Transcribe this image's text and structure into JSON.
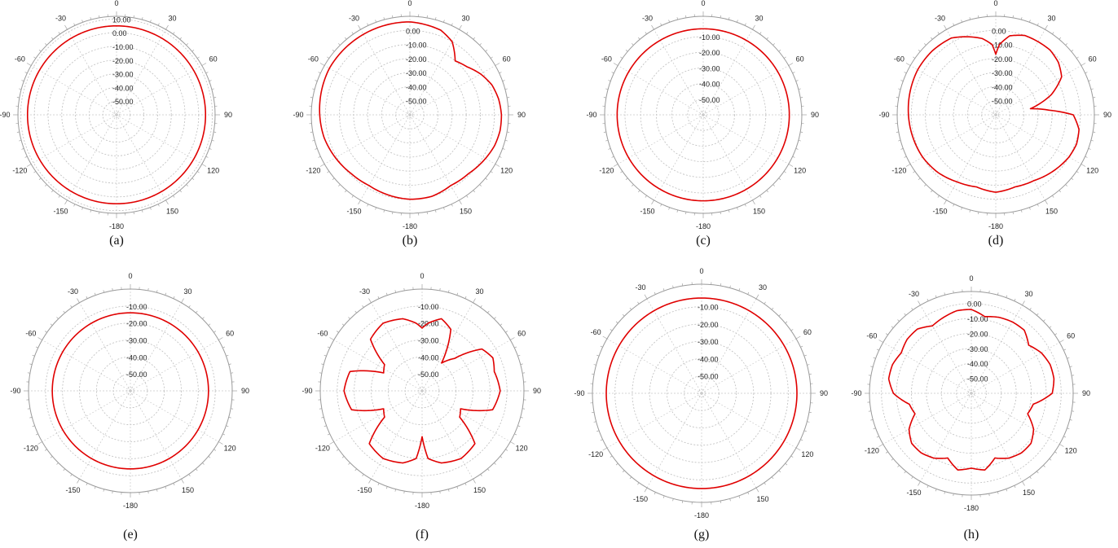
{
  "chart_data": [
    {
      "type": "polar-line",
      "caption": "(a)",
      "theta_ticks": [
        "0",
        "30",
        "60",
        "90",
        "120",
        "150",
        "-180",
        "-150",
        "-120",
        "-90",
        "-60",
        "-30"
      ],
      "r_ticks": [
        "10.00",
        "0.00",
        "-10.00",
        "-20.00",
        "-30.00",
        "-40.00",
        "-50.00"
      ],
      "r_range": [
        -60,
        12
      ],
      "theta_deg": [
        0,
        30,
        60,
        90,
        120,
        150,
        180,
        210,
        240,
        270,
        300,
        330
      ],
      "r_db": [
        5,
        5,
        5,
        5,
        5,
        5,
        5,
        5,
        5,
        5,
        5,
        5
      ],
      "grid": true,
      "line_color": "#e00000"
    },
    {
      "type": "polar-line",
      "caption": "(b)",
      "theta_ticks": [
        "0",
        "30",
        "60",
        "90",
        "120",
        "150",
        "-180",
        "-150",
        "-120",
        "-90",
        "-60",
        "-30"
      ],
      "r_ticks": [
        "0.00",
        "-10.00",
        "-20.00",
        "-30.00",
        "-40.00",
        "-50.00"
      ],
      "r_range": [
        -60,
        10
      ],
      "theta_deg": [
        0,
        20,
        30,
        40,
        50,
        60,
        70,
        80,
        90,
        100,
        110,
        120,
        135,
        150,
        165,
        180,
        195,
        210,
        225,
        240,
        255,
        270,
        285,
        300,
        315,
        330,
        345
      ],
      "r_db": [
        6,
        4,
        0,
        -10,
        -7,
        -2,
        2,
        4,
        5,
        5,
        4,
        2,
        -1,
        -2,
        0,
        0,
        -1,
        -2,
        -1,
        1,
        3,
        4,
        5,
        6,
        6,
        6,
        6
      ],
      "grid": true,
      "line_color": "#e00000"
    },
    {
      "type": "polar-line",
      "caption": "(c)",
      "theta_ticks": [
        "0",
        "30",
        "60",
        "90",
        "120",
        "150",
        "-180",
        "-150",
        "-120",
        "-90",
        "-60",
        "-30"
      ],
      "r_ticks": [
        "-10.00",
        "-20.00",
        "-30.00",
        "-40.00",
        "-50.00"
      ],
      "r_range": [
        -60,
        3
      ],
      "theta_deg": [
        0,
        30,
        60,
        90,
        120,
        150,
        180,
        210,
        240,
        270,
        300,
        330
      ],
      "r_db": [
        -5,
        -5,
        -5,
        -5,
        -5,
        -5,
        -5,
        -5,
        -5,
        -5,
        -5,
        -5
      ],
      "grid": true,
      "line_color": "#e00000"
    },
    {
      "type": "polar-line",
      "caption": "(d)",
      "theta_ticks": [
        "0",
        "30",
        "60",
        "90",
        "120",
        "150",
        "-180",
        "-150",
        "-120",
        "-90",
        "-60",
        "-30"
      ],
      "r_ticks": [
        "0.00",
        "-10.00",
        "-20.00",
        "-30.00",
        "-40.00",
        "-50.00"
      ],
      "r_range": [
        -60,
        10
      ],
      "theta_deg": [
        0,
        3,
        10,
        20,
        30,
        40,
        50,
        60,
        70,
        80,
        85,
        90,
        100,
        110,
        120,
        135,
        150,
        165,
        180,
        195,
        210,
        225,
        240,
        255,
        270,
        285,
        300,
        315,
        330,
        340,
        350,
        357
      ],
      "r_db": [
        -17,
        -10,
        -3,
        0,
        0,
        0,
        -2,
        -6,
        -18,
        -35,
        -22,
        -5,
        0,
        1,
        0,
        -3,
        -6,
        -7,
        -5,
        -7,
        -5,
        -2,
        0,
        1,
        2,
        3,
        4,
        4,
        3,
        -1,
        -5,
        -10
      ],
      "grid": true,
      "line_color": "#e00000"
    },
    {
      "type": "polar-line",
      "caption": "(e)",
      "theta_ticks": [
        "0",
        "30",
        "60",
        "90",
        "120",
        "150",
        "-180",
        "-150",
        "-120",
        "-90",
        "-60",
        "-30"
      ],
      "r_ticks": [
        "-10.00",
        "-20.00",
        "-30.00",
        "-40.00",
        "-50.00"
      ],
      "r_range": [
        -60,
        0
      ],
      "theta_deg": [
        0,
        30,
        60,
        90,
        120,
        150,
        180,
        210,
        240,
        270,
        300,
        330
      ],
      "r_db": [
        -14,
        -14,
        -14,
        -14,
        -14,
        -14,
        -14,
        -14,
        -14,
        -14,
        -14,
        -14
      ],
      "grid": true,
      "line_color": "#e00000"
    },
    {
      "type": "polar-line",
      "caption": "(f)",
      "theta_ticks": [
        "0",
        "30",
        "60",
        "90",
        "120",
        "150",
        "-180",
        "-150",
        "-120",
        "-90",
        "-60",
        "-30"
      ],
      "r_ticks": [
        "-10.00",
        "-20.00",
        "-30.00",
        "-40.00",
        "-50.00"
      ],
      "r_range": [
        -60,
        0
      ],
      "theta_deg": [
        0,
        5,
        15,
        25,
        35,
        45,
        55,
        65,
        75,
        90,
        105,
        115,
        125,
        135,
        150,
        165,
        175,
        180,
        185,
        195,
        210,
        225,
        235,
        245,
        255,
        270,
        285,
        295,
        305,
        315,
        330,
        345,
        355
      ],
      "r_db": [
        -23,
        -20,
        -16,
        -20,
        -40,
        -33,
        -17,
        -14,
        -16,
        -14,
        -17,
        -35,
        -33,
        -16,
        -14,
        -16,
        -20,
        -33,
        -20,
        -16,
        -14,
        -16,
        -33,
        -35,
        -17,
        -14,
        -16,
        -35,
        -33,
        -17,
        -14,
        -16,
        -20
      ],
      "grid": true,
      "line_color": "#e00000"
    },
    {
      "type": "polar-line",
      "caption": "(g)",
      "theta_ticks": [
        "0",
        "30",
        "60",
        "90",
        "120",
        "150",
        "-180",
        "-150",
        "-120",
        "-90",
        "-60",
        "-30"
      ],
      "r_ticks": [
        "-10.00",
        "-20.00",
        "-30.00",
        "-40.00",
        "-50.00"
      ],
      "r_range": [
        -60,
        3
      ],
      "theta_deg": [
        0,
        30,
        60,
        90,
        120,
        150,
        180,
        210,
        240,
        270,
        300,
        330
      ],
      "r_db": [
        -5,
        -5,
        -5,
        -5,
        -5,
        -5,
        -5,
        -5,
        -5,
        -5,
        -5,
        -5
      ],
      "grid": true,
      "line_color": "#e00000"
    },
    {
      "type": "polar-line",
      "caption": "(h)",
      "theta_ticks": [
        "0",
        "30",
        "60",
        "90",
        "120",
        "150",
        "-180",
        "-150",
        "-120",
        "-90",
        "-60",
        "-30"
      ],
      "r_ticks": [
        "0.00",
        "-10.00",
        "-20.00",
        "-30.00",
        "-40.00",
        "-50.00"
      ],
      "r_range": [
        -60,
        8
      ],
      "theta_deg": [
        0,
        10,
        20,
        30,
        40,
        50,
        60,
        70,
        80,
        90,
        100,
        110,
        120,
        130,
        140,
        150,
        160,
        170,
        180,
        190,
        200,
        210,
        220,
        230,
        240,
        250,
        260,
        270,
        280,
        290,
        300,
        310,
        320,
        330,
        340,
        350
      ],
      "r_db": [
        -4,
        -8,
        -6,
        -5,
        -5,
        -10,
        -6,
        -4,
        -4,
        -6,
        -18,
        -20,
        -12,
        -8,
        -8,
        -10,
        -14,
        -8,
        -10,
        -8,
        -14,
        -10,
        -8,
        -8,
        -12,
        -20,
        -18,
        -8,
        -4,
        -4,
        -6,
        -4,
        -4,
        -8,
        -6,
        -4
      ],
      "grid": true,
      "line_color": "#e00000"
    }
  ]
}
